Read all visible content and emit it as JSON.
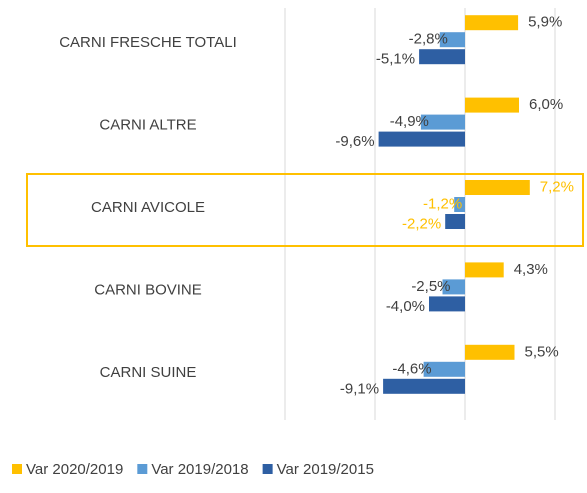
{
  "chart_data": {
    "type": "hbar",
    "categories": [
      "CARNI FRESCHE TOTALI",
      "CARNI ALTRE",
      "CARNI AVICOLE",
      "CARNI BOVINE",
      "CARNI SUINE"
    ],
    "series": [
      {
        "name": "Var 2020/2019",
        "color": "#FFC000",
        "values": [
          5.9,
          6.0,
          7.2,
          4.3,
          5.5
        ],
        "value_labels": [
          "5,9%",
          "6,0%",
          "7,2%",
          "4,3%",
          "5,5%"
        ]
      },
      {
        "name": "Var 2019/2018",
        "color": "#5B9BD5",
        "values": [
          -2.8,
          -4.9,
          -1.2,
          -2.5,
          -4.6
        ],
        "value_labels": [
          "-2,8%",
          "-4,9%",
          "-1,2%",
          "-2,5%",
          "-4,6%"
        ]
      },
      {
        "name": "Var 2019/2015",
        "color": "#2E5FA3",
        "values": [
          -5.1,
          -9.6,
          -2.2,
          -4.0,
          -9.1
        ],
        "value_labels": [
          "-5,1%",
          "-9,6%",
          "-2,2%",
          "-4,0%",
          "-9,1%"
        ]
      }
    ],
    "xlim": [
      -20,
      10
    ],
    "xticks": [
      -20,
      -10,
      0,
      10
    ],
    "grid": true,
    "highlight_index": 2,
    "highlight_color": "#FFC000",
    "legend": "bottom"
  }
}
